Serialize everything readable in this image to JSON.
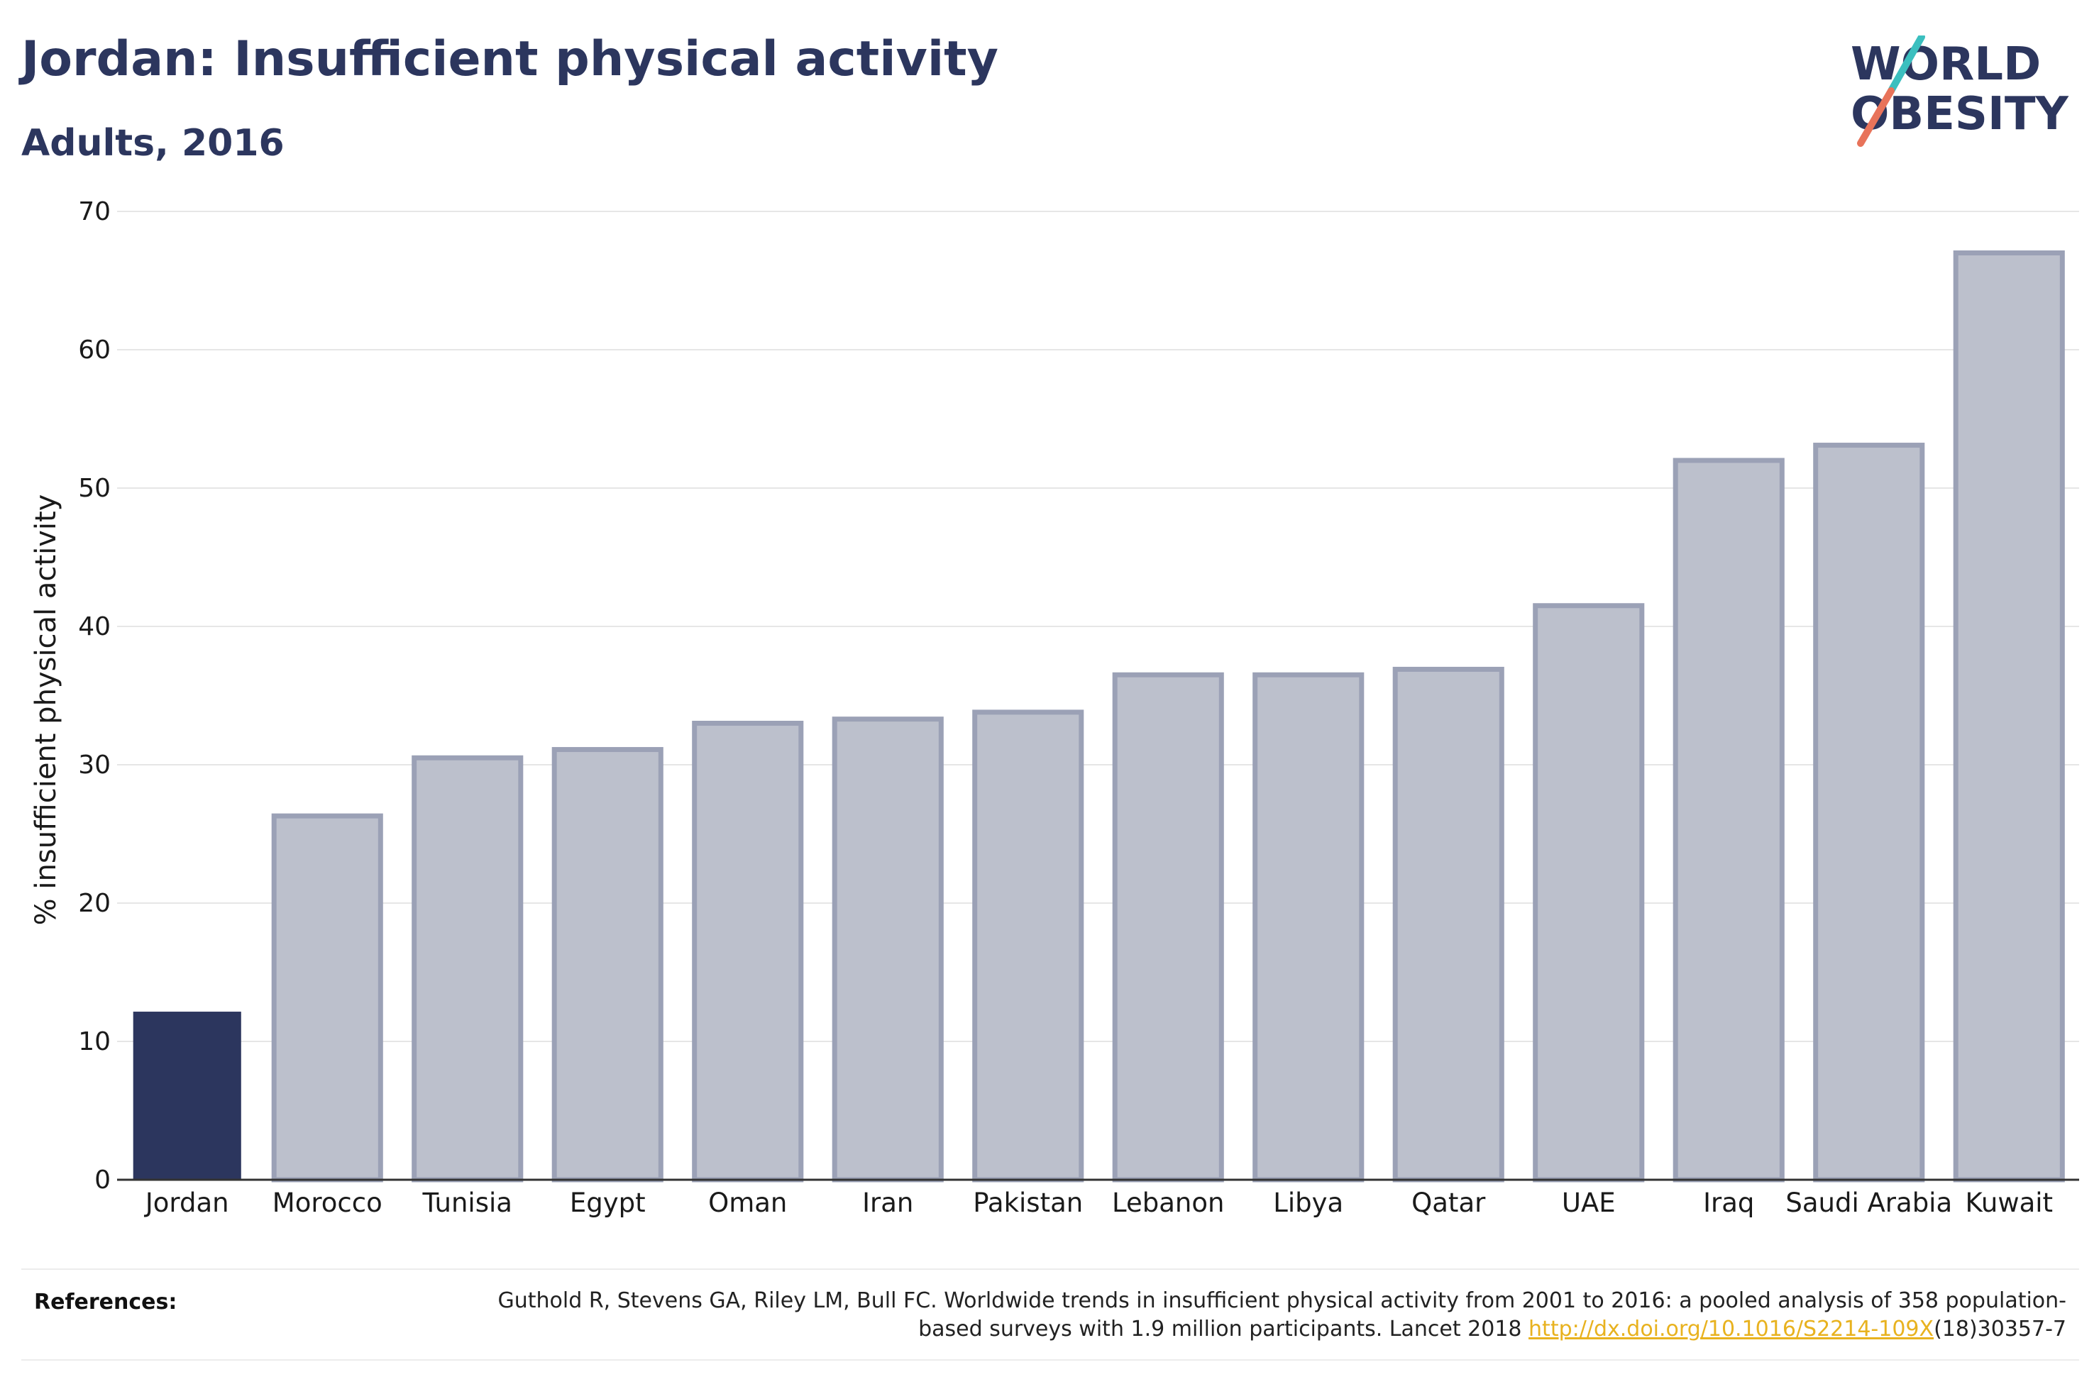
{
  "header": {
    "title": "Jordan: Insufficient physical activity",
    "subtitle": "Adults, 2016"
  },
  "logo": {
    "line1": "WORLD",
    "line2": "OBESITY",
    "slash_colors": [
      "#3bbfbf",
      "#e8735a"
    ]
  },
  "colors": {
    "highlight": "#2c365e",
    "bar_fill": "#bcc0cc",
    "bar_stroke": "#9ba1b6",
    "grid": "#e6e6e6",
    "axis": "#333333"
  },
  "chart_data": {
    "type": "bar",
    "ylabel": "% insufficient physical activity",
    "ylim": [
      0,
      70
    ],
    "yticks": [
      0,
      10,
      20,
      30,
      40,
      50,
      60,
      70
    ],
    "categories": [
      "Jordan",
      "Morocco",
      "Tunisia",
      "Egypt",
      "Oman",
      "Iran",
      "Pakistan",
      "Lebanon",
      "Libya",
      "Qatar",
      "UAE",
      "Iraq",
      "Saudi Arabia",
      "Kuwait"
    ],
    "values": [
      12.1,
      26.3,
      30.5,
      31.1,
      33.0,
      33.3,
      33.8,
      36.5,
      36.5,
      36.9,
      41.5,
      52.0,
      53.1,
      67.0
    ],
    "highlight": "Jordan",
    "grid": true
  },
  "references": {
    "label": "References:",
    "text_before_link": "Guthold R, Stevens GA, Riley LM, Bull FC. Worldwide trends in insufficient physical activity from 2001 to 2016: a pooled analysis of 358 population-based surveys with 1.9 million participants. Lancet 2018 ",
    "link_text": "http://dx.doi.org/10.1016/S2214-109X",
    "text_after_link": "(18)30357-7"
  }
}
